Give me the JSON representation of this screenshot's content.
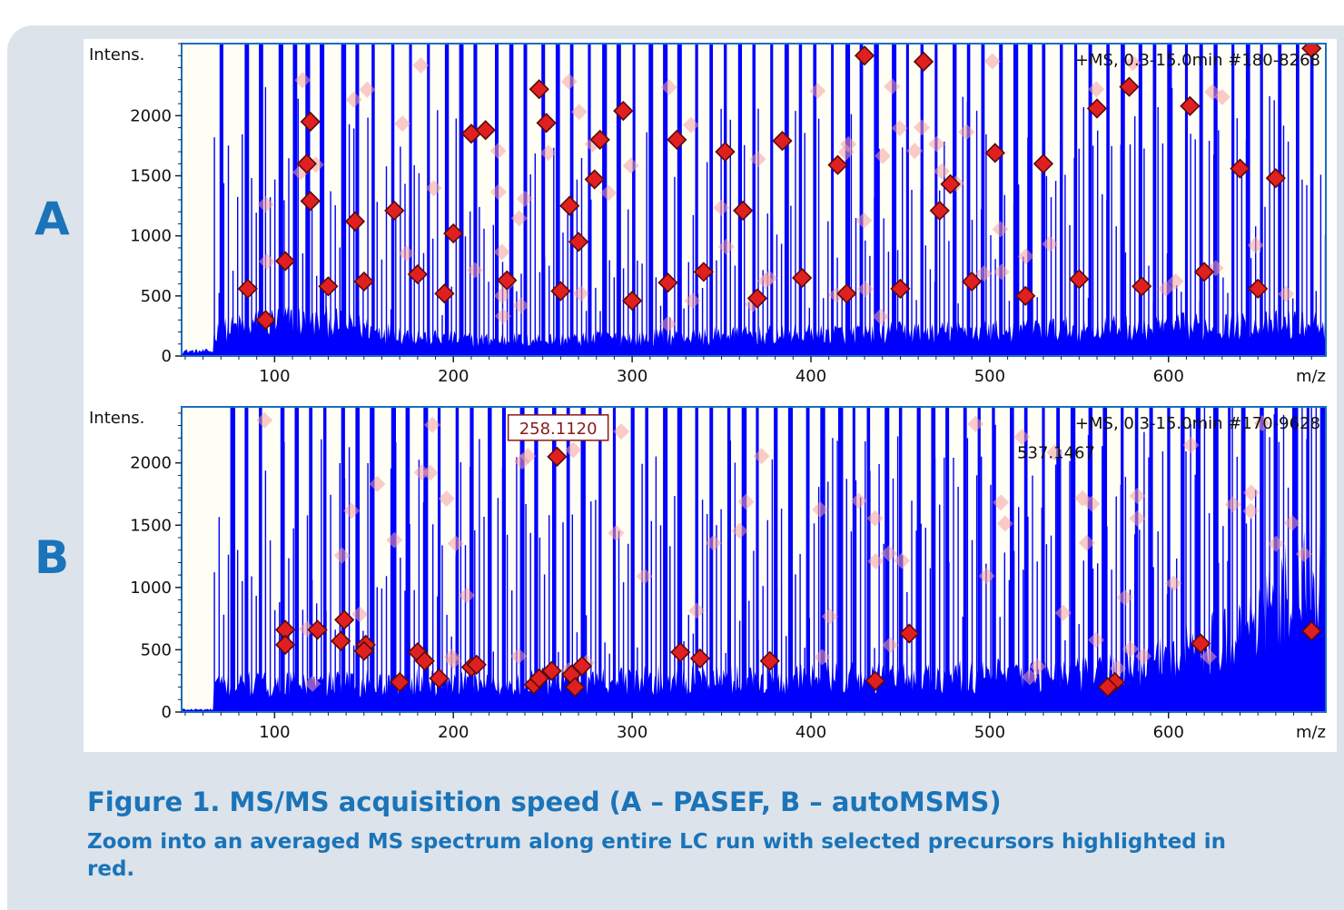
{
  "panels": {
    "a_label": "A",
    "b_label": "B"
  },
  "caption": {
    "title": "Figure 1. MS/MS acquisition speed (A – PASEF, B – autoMSMS)",
    "body": "Zoom into an averaged MS spectrum along entire LC run with selected precursors highlighted in red."
  },
  "colors": {
    "background_panel": "#dde3ea",
    "accent_text": "#1a74b9",
    "spectrum": "#0000ff",
    "precursor": "#e02020",
    "plot_background": "#fffef5"
  },
  "chart_data": [
    {
      "type": "scatter",
      "panel": "A",
      "ylabel": "Intens.",
      "xlabel": "m/z",
      "spectrum_info": "+MS, 0.3-15.0min #180-8268",
      "xlim": [
        48,
        688
      ],
      "ylim": [
        0,
        2600
      ],
      "xticks": [
        100,
        200,
        300,
        400,
        500,
        600
      ],
      "yticks": [
        0,
        500,
        1000,
        1500,
        2000
      ],
      "tall_peaks_mz": [
        70,
        84,
        92,
        103,
        111,
        118,
        126,
        138,
        146,
        155,
        166,
        176,
        186,
        196,
        204,
        212,
        224,
        232,
        240,
        250,
        258,
        266,
        276,
        284,
        292,
        301,
        310,
        318,
        326,
        336,
        344,
        352,
        360,
        368,
        378,
        386,
        394,
        402,
        412,
        420,
        428,
        436,
        446,
        454,
        462,
        470,
        480,
        488,
        496,
        506,
        514,
        522,
        530,
        540,
        548,
        556,
        566,
        574,
        584,
        592,
        600,
        610,
        618,
        626,
        636,
        644,
        652,
        662,
        672,
        680
      ],
      "highlighted_precursors": [
        {
          "mz": 120,
          "intensity": 1950
        },
        {
          "mz": 118,
          "intensity": 1600
        },
        {
          "mz": 120,
          "intensity": 1290
        },
        {
          "mz": 145,
          "intensity": 1120
        },
        {
          "mz": 167,
          "intensity": 1210
        },
        {
          "mz": 106,
          "intensity": 790
        },
        {
          "mz": 200,
          "intensity": 1020
        },
        {
          "mz": 210,
          "intensity": 1850
        },
        {
          "mz": 218,
          "intensity": 1880
        },
        {
          "mz": 248,
          "intensity": 2220
        },
        {
          "mz": 252,
          "intensity": 1940
        },
        {
          "mz": 265,
          "intensity": 1250
        },
        {
          "mz": 270,
          "intensity": 950
        },
        {
          "mz": 279,
          "intensity": 1470
        },
        {
          "mz": 282,
          "intensity": 1800
        },
        {
          "mz": 295,
          "intensity": 2040
        },
        {
          "mz": 325,
          "intensity": 1800
        },
        {
          "mz": 352,
          "intensity": 1700
        },
        {
          "mz": 362,
          "intensity": 1210
        },
        {
          "mz": 384,
          "intensity": 1790
        },
        {
          "mz": 415,
          "intensity": 1590
        },
        {
          "mz": 430,
          "intensity": 2500
        },
        {
          "mz": 463,
          "intensity": 2450
        },
        {
          "mz": 472,
          "intensity": 1210
        },
        {
          "mz": 478,
          "intensity": 1430
        },
        {
          "mz": 503,
          "intensity": 1690
        },
        {
          "mz": 530,
          "intensity": 1600
        },
        {
          "mz": 560,
          "intensity": 2060
        },
        {
          "mz": 578,
          "intensity": 2240
        },
        {
          "mz": 612,
          "intensity": 2080
        },
        {
          "mz": 640,
          "intensity": 1560
        },
        {
          "mz": 660,
          "intensity": 1480
        },
        {
          "mz": 680,
          "intensity": 2560
        },
        {
          "mz": 85,
          "intensity": 560
        },
        {
          "mz": 95,
          "intensity": 300
        },
        {
          "mz": 130,
          "intensity": 580
        },
        {
          "mz": 150,
          "intensity": 620
        },
        {
          "mz": 180,
          "intensity": 680
        },
        {
          "mz": 195,
          "intensity": 520
        },
        {
          "mz": 230,
          "intensity": 630
        },
        {
          "mz": 260,
          "intensity": 540
        },
        {
          "mz": 300,
          "intensity": 460
        },
        {
          "mz": 320,
          "intensity": 610
        },
        {
          "mz": 340,
          "intensity": 700
        },
        {
          "mz": 370,
          "intensity": 480
        },
        {
          "mz": 395,
          "intensity": 650
        },
        {
          "mz": 420,
          "intensity": 520
        },
        {
          "mz": 450,
          "intensity": 560
        },
        {
          "mz": 490,
          "intensity": 620
        },
        {
          "mz": 520,
          "intensity": 500
        },
        {
          "mz": 550,
          "intensity": 640
        },
        {
          "mz": 585,
          "intensity": 580
        },
        {
          "mz": 620,
          "intensity": 700
        },
        {
          "mz": 650,
          "intensity": 560
        }
      ]
    },
    {
      "type": "scatter",
      "panel": "B",
      "ylabel": "Intens.",
      "xlabel": "m/z",
      "spectrum_info": "+MS, 0.3-15.0min #170-9628",
      "annotations": [
        {
          "label": "258.1120",
          "mz": 258.112,
          "intensity": 2050
        },
        {
          "label": "537.1467",
          "mz": 537.1467,
          "intensity": 2300
        }
      ],
      "xlim": [
        48,
        688
      ],
      "ylim": [
        0,
        2450
      ],
      "xticks": [
        100,
        200,
        300,
        400,
        500,
        600
      ],
      "yticks": [
        0,
        500,
        1000,
        1500,
        2000
      ],
      "tall_peaks_mz": [
        76,
        84,
        92,
        104,
        112,
        120,
        128,
        138,
        146,
        154,
        166,
        174,
        184,
        192,
        202,
        210,
        220,
        228,
        238,
        246,
        256,
        264,
        272,
        282,
        290,
        300,
        308,
        318,
        326,
        336,
        344,
        354,
        362,
        370,
        380,
        388,
        398,
        406,
        416,
        424,
        432,
        442,
        450,
        460,
        468,
        476,
        486,
        494,
        502,
        512,
        520,
        530,
        538,
        546,
        556,
        564,
        574,
        582,
        590,
        600,
        608,
        616,
        626,
        634,
        642,
        652,
        660,
        670,
        678,
        686
      ],
      "highlighted_precursors": [
        {
          "mz": 106,
          "intensity": 660
        },
        {
          "mz": 106,
          "intensity": 540
        },
        {
          "mz": 124,
          "intensity": 660
        },
        {
          "mz": 139,
          "intensity": 740
        },
        {
          "mz": 137,
          "intensity": 570
        },
        {
          "mz": 151,
          "intensity": 540
        },
        {
          "mz": 150,
          "intensity": 490
        },
        {
          "mz": 170,
          "intensity": 240
        },
        {
          "mz": 180,
          "intensity": 480
        },
        {
          "mz": 184,
          "intensity": 410
        },
        {
          "mz": 192,
          "intensity": 270
        },
        {
          "mz": 210,
          "intensity": 360
        },
        {
          "mz": 213,
          "intensity": 380
        },
        {
          "mz": 245,
          "intensity": 220
        },
        {
          "mz": 248,
          "intensity": 270
        },
        {
          "mz": 258,
          "intensity": 2050
        },
        {
          "mz": 255,
          "intensity": 330
        },
        {
          "mz": 266,
          "intensity": 300
        },
        {
          "mz": 272,
          "intensity": 370
        },
        {
          "mz": 268,
          "intensity": 200
        },
        {
          "mz": 327,
          "intensity": 480
        },
        {
          "mz": 338,
          "intensity": 430
        },
        {
          "mz": 377,
          "intensity": 410
        },
        {
          "mz": 436,
          "intensity": 250
        },
        {
          "mz": 455,
          "intensity": 630
        },
        {
          "mz": 570,
          "intensity": 240
        },
        {
          "mz": 566,
          "intensity": 200
        },
        {
          "mz": 618,
          "intensity": 550
        },
        {
          "mz": 680,
          "intensity": 650
        }
      ]
    }
  ]
}
